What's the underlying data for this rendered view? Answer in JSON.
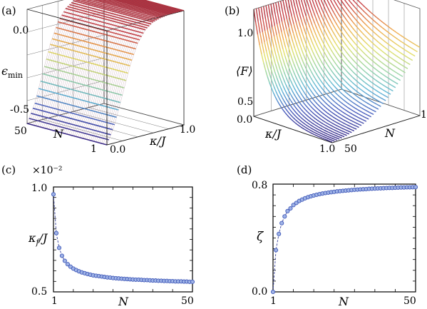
{
  "panels": {
    "a": {
      "label": "(a)"
    },
    "b": {
      "label": "(b)"
    },
    "c": {
      "label": "(c)"
    },
    "d": {
      "label": "(d)"
    }
  },
  "colors": {
    "axis": "#000000",
    "series_line": "#4b53a6",
    "marker": "#3f58b8",
    "colormap": [
      "#3b2c89",
      "#4a5fbf",
      "#5fb6d6",
      "#9ad6a4",
      "#e2e06a",
      "#f0a84e",
      "#c9454a",
      "#b0323d"
    ]
  },
  "chart_data": [
    {
      "panel": "a",
      "type": "surface",
      "zlabel": "ϵ_min",
      "ylabel": "N",
      "xlabel": "κ/J",
      "z_ticks": [
        "0.0",
        "-0.5"
      ],
      "n_ticks": [
        "50",
        "1"
      ],
      "kappa_ticks": [
        "0.0",
        "1.0"
      ],
      "zlim": [
        -0.5,
        0.0
      ],
      "xlim": [
        0.0,
        1.0
      ],
      "ylim": [
        1,
        50
      ],
      "kappa_profile": [
        -0.5,
        -0.42,
        -0.3,
        -0.18,
        -0.09,
        -0.04,
        -0.015,
        -0.005,
        0.0,
        0.0,
        0.0
      ]
    },
    {
      "panel": "b",
      "type": "surface",
      "zlabel": "⟨F⟩",
      "xlabel": "κ/J",
      "ylabel": "N",
      "z_ticks": [
        "1.0",
        "0.5"
      ],
      "kappa_ticks": [
        "0.0",
        "1.0"
      ],
      "n_ticks": [
        "1",
        "50"
      ],
      "zlim": [
        0.5,
        1.0
      ],
      "xlim": [
        0.0,
        1.0
      ],
      "ylim": [
        1,
        50
      ]
    },
    {
      "panel": "c",
      "type": "scatter",
      "xlabel": "N",
      "ylabel": "κ_f/J",
      "scale_note": "×10⁻²",
      "x_ticks": [
        "1",
        "50"
      ],
      "y_ticks": [
        "1.0",
        "0.5"
      ],
      "xlim": [
        1,
        50
      ],
      "ylim": [
        0.5,
        1.0
      ],
      "x": [
        1,
        2,
        3,
        4,
        5,
        6,
        7,
        8,
        9,
        10,
        11,
        12,
        13,
        14,
        15,
        16,
        17,
        18,
        19,
        20,
        21,
        22,
        23,
        24,
        25,
        26,
        27,
        28,
        29,
        30,
        31,
        32,
        33,
        34,
        35,
        36,
        37,
        38,
        39,
        40,
        41,
        42,
        43,
        44,
        45,
        46,
        47,
        48,
        49,
        50
      ],
      "y": [
        0.965,
        0.78,
        0.71,
        0.672,
        0.648,
        0.632,
        0.62,
        0.611,
        0.604,
        0.598,
        0.593,
        0.589,
        0.585,
        0.582,
        0.579,
        0.577,
        0.575,
        0.573,
        0.571,
        0.569,
        0.568,
        0.566,
        0.565,
        0.564,
        0.563,
        0.562,
        0.561,
        0.56,
        0.559,
        0.558,
        0.558,
        0.557,
        0.556,
        0.556,
        0.555,
        0.554,
        0.554,
        0.553,
        0.553,
        0.552,
        0.552,
        0.551,
        0.551,
        0.55,
        0.55,
        0.55,
        0.549,
        0.549,
        0.548,
        0.548
      ]
    },
    {
      "panel": "d",
      "type": "scatter",
      "xlabel": "N",
      "ylabel": "ζ",
      "x_ticks": [
        "1",
        "50"
      ],
      "y_ticks": [
        "0.8",
        "0.0"
      ],
      "xlim": [
        1,
        50
      ],
      "ylim": [
        0.0,
        0.8
      ],
      "x": [
        1,
        2,
        3,
        4,
        5,
        6,
        7,
        8,
        9,
        10,
        11,
        12,
        13,
        14,
        15,
        16,
        17,
        18,
        19,
        20,
        21,
        22,
        23,
        24,
        25,
        26,
        27,
        28,
        29,
        30,
        31,
        32,
        33,
        34,
        35,
        36,
        37,
        38,
        39,
        40,
        41,
        42,
        43,
        44,
        45,
        46,
        47,
        48,
        49,
        50
      ],
      "y": [
        0.0,
        0.31,
        0.43,
        0.51,
        0.56,
        0.6,
        0.62,
        0.645,
        0.66,
        0.675,
        0.685,
        0.695,
        0.703,
        0.71,
        0.716,
        0.721,
        0.726,
        0.73,
        0.734,
        0.737,
        0.74,
        0.743,
        0.746,
        0.748,
        0.75,
        0.752,
        0.754,
        0.756,
        0.758,
        0.759,
        0.761,
        0.762,
        0.763,
        0.765,
        0.766,
        0.767,
        0.768,
        0.769,
        0.77,
        0.771,
        0.772,
        0.772,
        0.773,
        0.774,
        0.775,
        0.775,
        0.776,
        0.776,
        0.777,
        0.778
      ]
    }
  ]
}
